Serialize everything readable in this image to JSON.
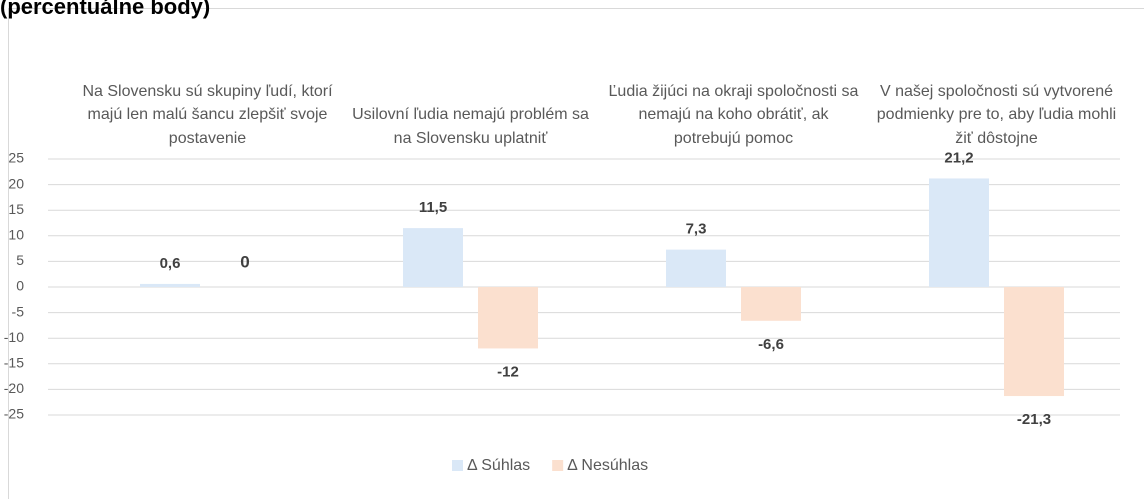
{
  "chart_data": {
    "type": "bar",
    "title": "(percentuálne body)",
    "categories": [
      "Na Slovensku sú skupiny ľudí, ktorí majú len malú šancu zlepšiť svoje postavenie",
      "Usilovní ľudia nemajú problém sa na Slovensku uplatniť",
      "Ľudia žijúci na okraji spoločnosti sa nemajú na koho obrátiť, ak potrebujú pomoc",
      "V našej spoločnosti sú vytvorené podmienky pre to, aby ľudia mohli žiť dôstojne"
    ],
    "series": [
      {
        "name": "Δ Súhlas",
        "color": "#dae8f7",
        "values": [
          0.6,
          11.5,
          7.3,
          21.2
        ],
        "value_labels": [
          "0,6",
          "11,5",
          "7,3",
          "21,2"
        ]
      },
      {
        "name": "Δ Nesúhlas",
        "color": "#fbe0cf",
        "values": [
          0,
          -12,
          -6.6,
          -21.3
        ],
        "value_labels": [
          "0",
          "-12",
          "-6,6",
          "-21,3"
        ]
      }
    ],
    "ylim": [
      -25,
      25
    ],
    "yticks": [
      -25,
      -20,
      -15,
      -10,
      -5,
      0,
      5,
      10,
      15,
      20,
      25
    ],
    "grid": true,
    "legend": "bottom"
  }
}
